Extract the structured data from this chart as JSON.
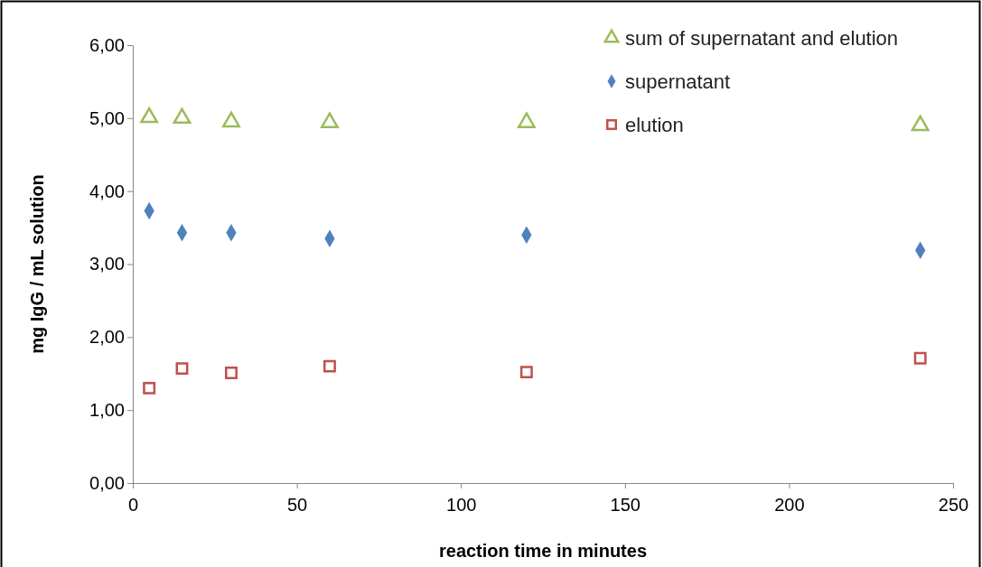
{
  "chart_data": {
    "type": "scatter",
    "xlabel": "reaction time in minutes",
    "ylabel": "mg IgG / mL solution",
    "x": [
      5,
      15,
      30,
      60,
      120,
      240
    ],
    "series": [
      {
        "name": "sum of supernatant and elution",
        "color": "#9bbb59",
        "marker": "triangle",
        "values": [
          5.01,
          5.0,
          4.95,
          4.94,
          4.94,
          4.9
        ]
      },
      {
        "name": "supernatant",
        "color": "#4f81bd",
        "marker": "diamond",
        "values": [
          3.73,
          3.43,
          3.43,
          3.35,
          3.4,
          3.19
        ]
      },
      {
        "name": "elution",
        "color": "#c0504d",
        "marker": "square",
        "values": [
          1.3,
          1.57,
          1.51,
          1.6,
          1.52,
          1.71
        ]
      }
    ],
    "xlim": [
      0,
      250
    ],
    "xticks": [
      0,
      50,
      100,
      150,
      200,
      250
    ],
    "ylim": [
      0,
      6
    ],
    "yticks": [
      {
        "value": 0,
        "label": "0,00"
      },
      {
        "value": 1,
        "label": "1,00"
      },
      {
        "value": 2,
        "label": "2,00"
      },
      {
        "value": 3,
        "label": "3,00"
      },
      {
        "value": 4,
        "label": "4,00"
      },
      {
        "value": 5,
        "label": "5,00"
      },
      {
        "value": 6,
        "label": "6,00"
      }
    ],
    "grid": false,
    "legend": "top right"
  }
}
